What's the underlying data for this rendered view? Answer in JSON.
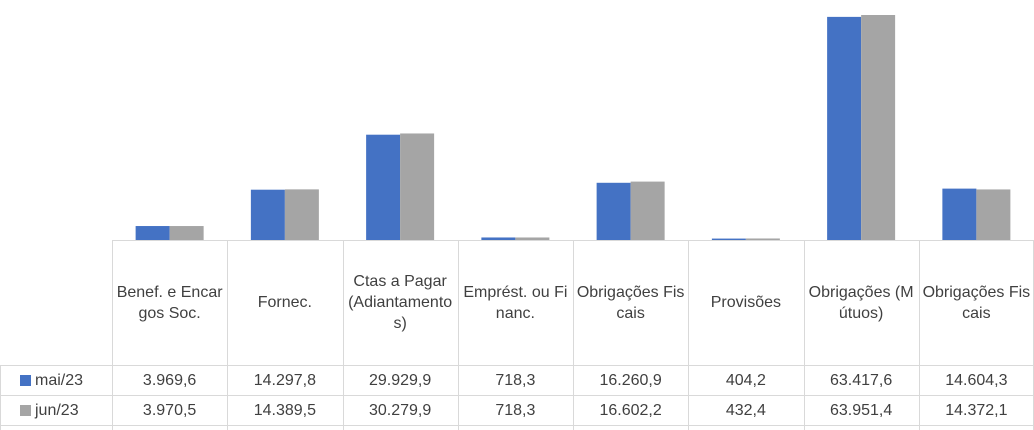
{
  "chart_data": {
    "type": "bar",
    "categories": [
      "Benef. e Encargos Soc.",
      "Fornec.",
      "Ctas a Pagar (Adiantamentos)",
      "Emprést. ou Financ.",
      "Obrigações Fiscais",
      "Provisões",
      "Obrigações (Mútuos)",
      "Obrigações Fiscais"
    ],
    "series": [
      {
        "name": "mai/23",
        "color": "#4472c4",
        "values": [
          3969.6,
          14297.8,
          29929.9,
          718.3,
          16260.9,
          404.2,
          63417.6,
          14604.3
        ],
        "value_labels": [
          "3.969,6",
          "14.297,8",
          "29.929,9",
          "718,3",
          "16.260,9",
          "404,2",
          "63.417,6",
          "14.604,3"
        ]
      },
      {
        "name": "jun/23",
        "color": "#a5a5a5",
        "values": [
          3970.5,
          14389.5,
          30279.9,
          718.3,
          16602.2,
          432.4,
          63951.4,
          14372.1
        ],
        "value_labels": [
          "3.970,5",
          "14.389,5",
          "30.279,9",
          "718,3",
          "16.602,2",
          "432,4",
          "63.951,4",
          "14.372,1"
        ]
      }
    ]
  }
}
